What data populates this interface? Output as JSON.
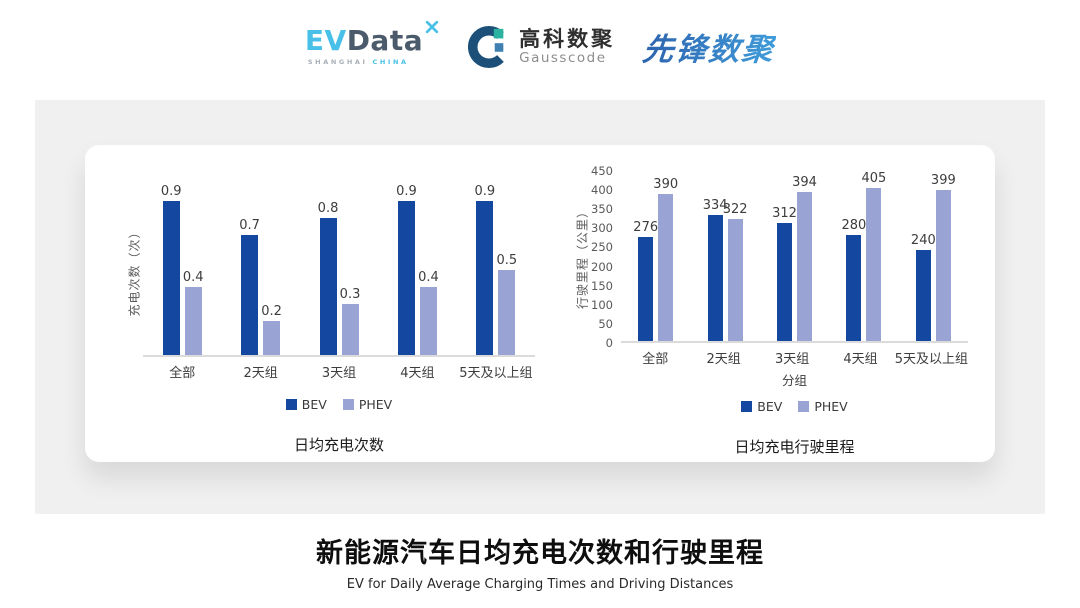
{
  "header": {
    "evdata": {
      "part1": "EV",
      "part2": "Data",
      "tagline1": "SHANGHAI",
      "tagline2": "CHINA"
    },
    "gausscode": {
      "name_cn": "高科数聚",
      "name_en": "Gausscode"
    },
    "pioneer": {
      "name": "先锋数聚"
    }
  },
  "chart_data": [
    {
      "type": "bar",
      "title": "日均充电次数",
      "ylabel": "充电次数（次）",
      "xlabel": "",
      "categories": [
        "全部",
        "2天组",
        "3天组",
        "4天组",
        "5天及以上组"
      ],
      "series": [
        {
          "name": "BEV",
          "color": "#1347A0",
          "values": [
            0.9,
            0.7,
            0.8,
            0.9,
            0.9
          ]
        },
        {
          "name": "PHEV",
          "color": "#99A3D4",
          "values": [
            0.4,
            0.2,
            0.3,
            0.4,
            0.5
          ]
        }
      ],
      "ylim": [
        0,
        1.0
      ],
      "yticks": [],
      "grid": false,
      "legend": [
        "BEV",
        "PHEV"
      ],
      "legend_position": "bottom",
      "value_labels": true
    },
    {
      "type": "bar",
      "title": "日均充电行驶里程",
      "ylabel": "行驶里程（公里）",
      "xlabel": "分组",
      "categories": [
        "全部",
        "2天组",
        "3天组",
        "4天组",
        "5天及以上组"
      ],
      "series": [
        {
          "name": "BEV",
          "color": "#1347A0",
          "values": [
            276,
            334,
            312,
            280,
            240
          ]
        },
        {
          "name": "PHEV",
          "color": "#99A3D4",
          "values": [
            390,
            322,
            394,
            405,
            399
          ]
        }
      ],
      "ylim": [
        0,
        450
      ],
      "yticks": [
        450,
        400,
        350,
        300,
        250,
        200,
        150,
        100,
        50,
        0
      ],
      "grid": false,
      "legend": [
        "BEV",
        "PHEV"
      ],
      "legend_position": "bottom",
      "value_labels": true
    }
  ],
  "footer": {
    "title": "新能源汽车日均充电次数和行驶里程",
    "subtitle": "EV for Daily Average Charging Times and Driving Distances"
  },
  "colors": {
    "bev": "#1347A0",
    "phev": "#99A3D4",
    "panel": "#F0F0F1",
    "card": "#FFFFFF"
  }
}
